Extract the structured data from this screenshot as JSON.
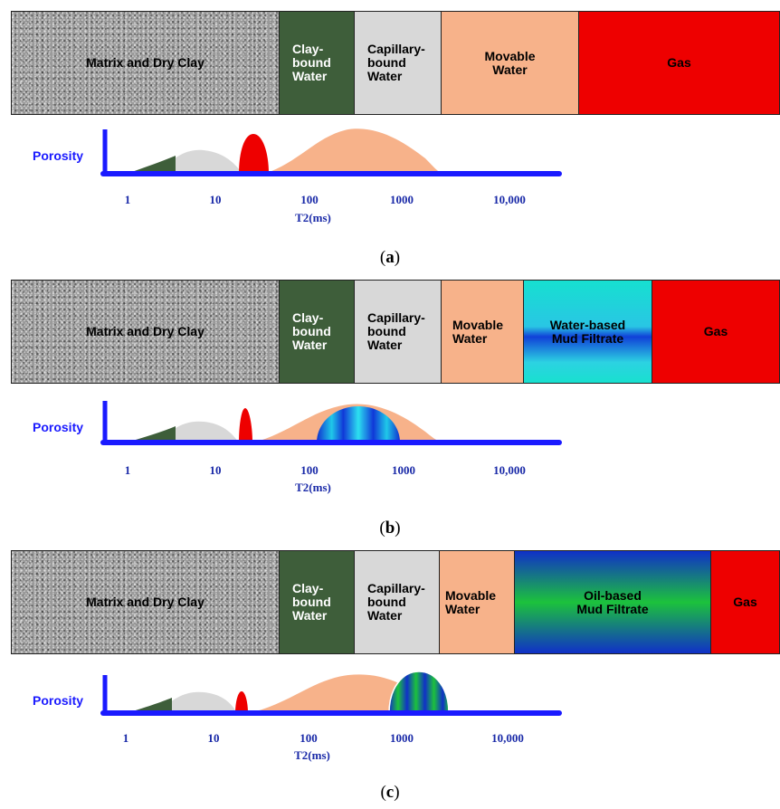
{
  "panels": [
    {
      "id": "a",
      "caption_letter": "a",
      "segments": [
        {
          "label": "Matrix and Dry Clay",
          "color": "#9a9a9a"
        },
        {
          "label": "Clay-\nbound\nWater",
          "color": "#3e5e3a"
        },
        {
          "label": "Capillary-\nbound\nWater",
          "color": "#d8d8d8"
        },
        {
          "label": "Movable\nWater",
          "color": "#f7b28a"
        },
        {
          "label": "Gas",
          "color": "#ee0000"
        }
      ],
      "chart": {
        "ylabel": "Porosity",
        "xlabel": "T2(ms)",
        "ticks": [
          "1",
          "10",
          "100",
          "1000",
          "10,000"
        ]
      }
    },
    {
      "id": "b",
      "caption_letter": "b",
      "segments": [
        {
          "label": "Matrix and Dry Clay",
          "color": "#9a9a9a"
        },
        {
          "label": "Clay-\nbound\nWater",
          "color": "#3e5e3a"
        },
        {
          "label": "Capillary-\nbound\nWater",
          "color": "#d8d8d8"
        },
        {
          "label": "Movable\nWater",
          "color": "#f7b28a"
        },
        {
          "label": "Water-based\nMud Filtrate",
          "color": "#16e0d0"
        },
        {
          "label": "Gas",
          "color": "#ee0000"
        }
      ],
      "chart": {
        "ylabel": "Porosity",
        "xlabel": "T2(ms)",
        "ticks": [
          "1",
          "10",
          "100",
          "1000",
          "10,000"
        ]
      }
    },
    {
      "id": "c",
      "caption_letter": "c",
      "segments": [
        {
          "label": "Matrix and Dry Clay",
          "color": "#9a9a9a"
        },
        {
          "label": "Clay-\nbound\nWater",
          "color": "#3e5e3a"
        },
        {
          "label": "Capillary-\nbound\nWater",
          "color": "#d8d8d8"
        },
        {
          "label": "Movable\nWater",
          "color": "#f7b28a"
        },
        {
          "label": "Oil-based\nMud Filtrate",
          "color": "#1cc23c"
        },
        {
          "label": "Gas",
          "color": "#ee0000"
        }
      ],
      "chart": {
        "ylabel": "Porosity",
        "xlabel": "T2(ms)",
        "ticks": [
          "1",
          "10",
          "100",
          "1000",
          "10,000"
        ]
      }
    }
  ]
}
